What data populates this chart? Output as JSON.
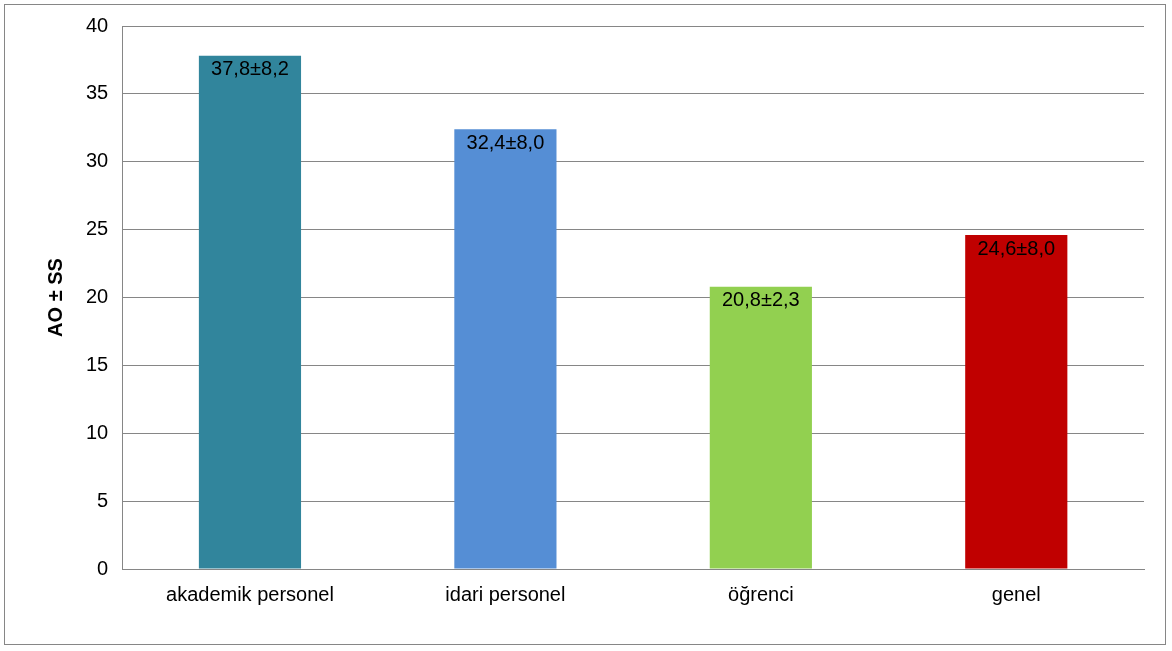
{
  "chart_data": {
    "type": "bar",
    "ylabel": "AO ± SS",
    "categories": [
      "akademik personel",
      "idari personel",
      "öğrenci",
      "genel"
    ],
    "values": [
      37.8,
      32.4,
      20.8,
      24.6
    ],
    "colors": [
      "#31859c",
      "#558ed5",
      "#92d050",
      "#c00000"
    ],
    "value_labels": [
      "37,8±8,2",
      "32,4±8,0",
      "20,8±2,3",
      "24,6±8,0"
    ],
    "ylim": [
      0,
      40
    ],
    "yticks": [
      0,
      5,
      10,
      15,
      20,
      25,
      30,
      35,
      40
    ],
    "grid": "y",
    "legend": false
  }
}
